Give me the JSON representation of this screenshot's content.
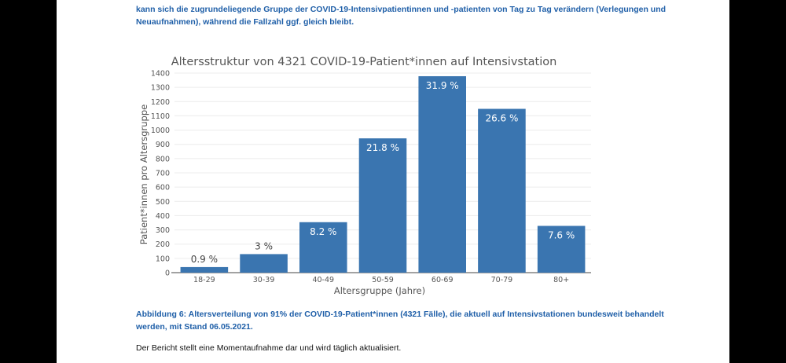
{
  "document": {
    "intro_text": "kann sich die zugrundeliegende Gruppe der COVID-19-Intensivpatientinnen und -patienten von Tag zu Tag verändern (Verlegungen und Neuaufnahmen), während die Fallzahl ggf. gleich bleibt.",
    "caption": "Abbildung 6: Altersverteilung von 91% der COVID-19-Patient*innen (4321 Fälle), die aktuell auf Intensivstationen bundesweit behandelt werden, mit Stand 06.05.2021.",
    "note": "Der Bericht stellt eine Momentaufnahme dar und wird täglich aktualisiert."
  },
  "chart_data": {
    "type": "bar",
    "title": "Altersstruktur von 4321 COVID-19-Patient*innen auf Intensivstation",
    "xlabel": "Altersgruppe (Jahre)",
    "ylabel": "Patient*innen pro Altersgruppe",
    "categories": [
      "18-29",
      "30-39",
      "40-49",
      "50-59",
      "60-69",
      "70-79",
      "80+"
    ],
    "values": [
      39,
      130,
      354,
      942,
      1378,
      1149,
      328
    ],
    "data_labels": [
      "0.9 %",
      "3 %",
      "8.2 %",
      "21.8 %",
      "31.9 %",
      "26.6 %",
      "7.6 %"
    ],
    "ylim": [
      0,
      1400
    ],
    "yticks": [
      0,
      100,
      200,
      300,
      400,
      500,
      600,
      700,
      800,
      900,
      1000,
      1100,
      1200,
      1300,
      1400
    ],
    "grid": true,
    "bar_color": "#3a75b0"
  }
}
